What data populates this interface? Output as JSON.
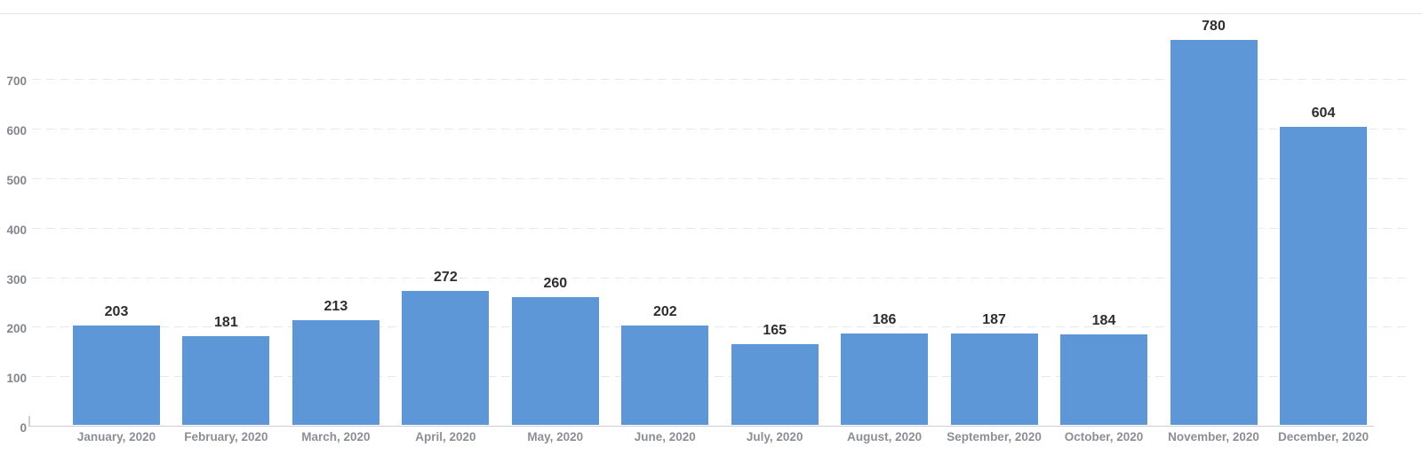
{
  "chart_data": {
    "type": "bar",
    "title": "",
    "xlabel": "",
    "ylabel": "",
    "categories": [
      "January, 2020",
      "February, 2020",
      "March, 2020",
      "April, 2020",
      "May, 2020",
      "June, 2020",
      "July, 2020",
      "August, 2020",
      "September, 2020",
      "October, 2020",
      "November, 2020",
      "December, 2020"
    ],
    "values": [
      203,
      181,
      213,
      272,
      260,
      202,
      165,
      186,
      187,
      184,
      780,
      604
    ],
    "value_labels": [
      "203",
      "181",
      "213",
      "272",
      "260",
      "202",
      "165",
      "186",
      "187",
      "184",
      "780",
      "604"
    ],
    "yticks": [
      0,
      100,
      200,
      300,
      400,
      500,
      600,
      700
    ],
    "ylim": [
      0,
      834
    ],
    "grid": "horizontal-dashed",
    "legend_position": "none",
    "colors": {
      "bar": "#5d97d8",
      "value_label": "#2e2e2e",
      "axis_label": "#81868e",
      "category_label": "#8b8f95",
      "gridline": "#e8e8ea",
      "axis_line": "#ccd0d4",
      "top_border": "#e4e4e6",
      "background": "#ffffff"
    }
  }
}
